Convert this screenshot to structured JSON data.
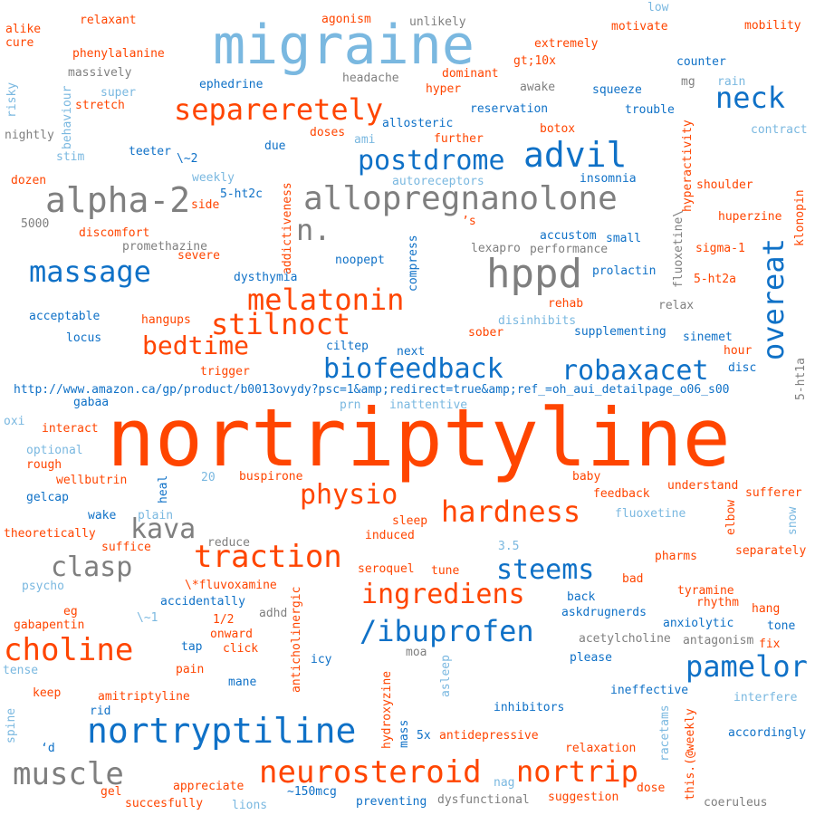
{
  "words": [
    {
      "text": "nortriptyline",
      "color": "orange"
    },
    {
      "text": "migraine",
      "color": "light-blue"
    },
    {
      "text": "hppd",
      "color": "gray"
    },
    {
      "text": "allopregnanolone",
      "color": "gray"
    },
    {
      "text": "alpha-2",
      "color": "gray"
    },
    {
      "text": "advil",
      "color": "blue"
    },
    {
      "text": "separeretely",
      "color": "orange"
    },
    {
      "text": "postdrome",
      "color": "blue"
    },
    {
      "text": "neck",
      "color": "blue"
    },
    {
      "text": "n.",
      "color": "gray"
    },
    {
      "text": "massage",
      "color": "blue"
    },
    {
      "text": "melatonin",
      "color": "orange"
    },
    {
      "text": "overeat",
      "color": "blue"
    },
    {
      "text": "stilnoct",
      "color": "orange"
    },
    {
      "text": "bedtime",
      "color": "orange"
    },
    {
      "text": "biofeedback",
      "color": "blue"
    },
    {
      "text": "robaxacet",
      "color": "blue"
    },
    {
      "text": "physio",
      "color": "orange"
    },
    {
      "text": "hardness",
      "color": "orange"
    },
    {
      "text": "kava",
      "color": "gray"
    },
    {
      "text": "traction",
      "color": "orange"
    },
    {
      "text": "clasp",
      "color": "gray"
    },
    {
      "text": "steems",
      "color": "blue"
    },
    {
      "text": "ingrediens",
      "color": "orange"
    },
    {
      "text": "choline",
      "color": "orange"
    },
    {
      "text": "/ibuprofen",
      "color": "blue"
    },
    {
      "text": "pamelor",
      "color": "blue"
    },
    {
      "text": "nortryptiline",
      "color": "blue"
    },
    {
      "text": "muscle",
      "color": "gray"
    },
    {
      "text": "neurosteroid",
      "color": "orange"
    },
    {
      "text": "nortrip",
      "color": "orange"
    },
    {
      "text": "http://www.amazon.ca/gp/product/b0013ovydy?psc=1&amp;redirect=true&amp;ref_=oh_aui_detailpage_o06_s00",
      "color": "blue"
    },
    {
      "text": "alike",
      "color": "orange"
    },
    {
      "text": "cure",
      "color": "orange"
    },
    {
      "text": "relaxant",
      "color": "orange"
    },
    {
      "text": "agonism",
      "color": "orange"
    },
    {
      "text": "unlikely",
      "color": "gray"
    },
    {
      "text": "low",
      "color": "light-blue"
    },
    {
      "text": "motivate",
      "color": "orange"
    },
    {
      "text": "mobility",
      "color": "orange"
    },
    {
      "text": "extremely",
      "color": "orange"
    },
    {
      "text": "phenylalanine",
      "color": "orange"
    },
    {
      "text": "gt;10x",
      "color": "orange"
    },
    {
      "text": "counter",
      "color": "blue"
    },
    {
      "text": "massively",
      "color": "gray"
    },
    {
      "text": "dominant",
      "color": "orange"
    },
    {
      "text": "headache",
      "color": "gray"
    },
    {
      "text": "ephedrine",
      "color": "blue"
    },
    {
      "text": "hyper",
      "color": "orange"
    },
    {
      "text": "awake",
      "color": "gray"
    },
    {
      "text": "squeeze",
      "color": "blue"
    },
    {
      "text": "mg",
      "color": "gray"
    },
    {
      "text": "rain",
      "color": "light-blue"
    },
    {
      "text": "super",
      "color": "light-blue"
    },
    {
      "text": "stretch",
      "color": "orange"
    },
    {
      "text": "reservation",
      "color": "blue"
    },
    {
      "text": "trouble",
      "color": "blue"
    },
    {
      "text": "risky",
      "color": "light-blue"
    },
    {
      "text": "behaviour",
      "color": "light-blue"
    },
    {
      "text": "allosteric",
      "color": "blue"
    },
    {
      "text": "botox",
      "color": "orange"
    },
    {
      "text": "contract",
      "color": "light-blue"
    },
    {
      "text": "nightly",
      "color": "gray"
    },
    {
      "text": "doses",
      "color": "orange"
    },
    {
      "text": "ami",
      "color": "light-blue"
    },
    {
      "text": "further",
      "color": "orange"
    },
    {
      "text": "hyperactivity",
      "color": "orange"
    },
    {
      "text": "stim",
      "color": "light-blue"
    },
    {
      "text": "teeter",
      "color": "blue"
    },
    {
      "text": "due",
      "color": "blue"
    },
    {
      "text": "insomnia",
      "color": "blue"
    },
    {
      "text": "\\~2",
      "color": "blue"
    },
    {
      "text": "weekly",
      "color": "light-blue"
    },
    {
      "text": "shoulder",
      "color": "orange"
    },
    {
      "text": "dozen",
      "color": "orange"
    },
    {
      "text": "addictiveness",
      "color": "orange"
    },
    {
      "text": "autoreceptors",
      "color": "light-blue"
    },
    {
      "text": "klonopin",
      "color": "orange"
    },
    {
      "text": "5-ht2c",
      "color": "blue"
    },
    {
      "text": "side",
      "color": "orange"
    },
    {
      "text": "huperzine",
      "color": "orange"
    },
    {
      "text": "5000",
      "color": "gray"
    },
    {
      "text": "fluoxetine\\",
      "color": "gray"
    },
    {
      "text": "discomfort",
      "color": "orange"
    },
    {
      "text": "’s",
      "color": "orange"
    },
    {
      "text": "promethazine",
      "color": "gray"
    },
    {
      "text": "small",
      "color": "blue"
    },
    {
      "text": "accustom",
      "color": "blue"
    },
    {
      "text": "lexapro",
      "color": "gray"
    },
    {
      "text": "performance",
      "color": "gray"
    },
    {
      "text": "sigma-1",
      "color": "orange"
    },
    {
      "text": "severe",
      "color": "orange"
    },
    {
      "text": "noopept",
      "color": "blue"
    },
    {
      "text": "compress",
      "color": "blue"
    },
    {
      "text": "prolactin",
      "color": "blue"
    },
    {
      "text": "5-ht2a",
      "color": "orange"
    },
    {
      "text": "dysthymia",
      "color": "blue"
    },
    {
      "text": "rehab",
      "color": "orange"
    },
    {
      "text": "relax",
      "color": "gray"
    },
    {
      "text": "acceptable",
      "color": "blue"
    },
    {
      "text": "hangups",
      "color": "orange"
    },
    {
      "text": "disinhibits",
      "color": "light-blue"
    },
    {
      "text": "supplementing",
      "color": "blue"
    },
    {
      "text": "sinemet",
      "color": "blue"
    },
    {
      "text": "locus",
      "color": "blue"
    },
    {
      "text": "sober",
      "color": "orange"
    },
    {
      "text": "ciltep",
      "color": "blue"
    },
    {
      "text": "next",
      "color": "blue"
    },
    {
      "text": "hour",
      "color": "orange"
    },
    {
      "text": "trigger",
      "color": "orange"
    },
    {
      "text": "disc",
      "color": "blue"
    },
    {
      "text": "5-ht1a",
      "color": "gray"
    },
    {
      "text": "gabaa",
      "color": "blue"
    },
    {
      "text": "prn",
      "color": "light-blue"
    },
    {
      "text": "inattentive",
      "color": "light-blue"
    },
    {
      "text": "oxi",
      "color": "light-blue"
    },
    {
      "text": "interact",
      "color": "orange"
    },
    {
      "text": "optional",
      "color": "light-blue"
    },
    {
      "text": "rough",
      "color": "orange"
    },
    {
      "text": "wellbutrin",
      "color": "orange"
    },
    {
      "text": "20",
      "color": "light-blue"
    },
    {
      "text": "buspirone",
      "color": "orange"
    },
    {
      "text": "baby",
      "color": "orange"
    },
    {
      "text": "understand",
      "color": "orange"
    },
    {
      "text": "heal",
      "color": "blue"
    },
    {
      "text": "gelcap",
      "color": "blue"
    },
    {
      "text": "feedback",
      "color": "orange"
    },
    {
      "text": "sufferer",
      "color": "orange"
    },
    {
      "text": "elbow",
      "color": "orange"
    },
    {
      "text": "plain",
      "color": "light-blue"
    },
    {
      "text": "wake",
      "color": "blue"
    },
    {
      "text": "fluoxetine",
      "color": "light-blue"
    },
    {
      "text": "snow",
      "color": "light-blue"
    },
    {
      "text": "sleep",
      "color": "orange"
    },
    {
      "text": "theoretically",
      "color": "orange"
    },
    {
      "text": "induced",
      "color": "orange"
    },
    {
      "text": "reduce",
      "color": "gray"
    },
    {
      "text": "suffice",
      "color": "orange"
    },
    {
      "text": "3.5",
      "color": "light-blue"
    },
    {
      "text": "separately",
      "color": "orange"
    },
    {
      "text": "pharms",
      "color": "orange"
    },
    {
      "text": "\\*fluvoxamine",
      "color": "orange"
    },
    {
      "text": "seroquel",
      "color": "orange"
    },
    {
      "text": "tune",
      "color": "orange"
    },
    {
      "text": "psycho",
      "color": "light-blue"
    },
    {
      "text": "bad",
      "color": "orange"
    },
    {
      "text": "tyramine",
      "color": "orange"
    },
    {
      "text": "back",
      "color": "blue"
    },
    {
      "text": "rhythm",
      "color": "orange"
    },
    {
      "text": "hang",
      "color": "orange"
    },
    {
      "text": "eg",
      "color": "orange"
    },
    {
      "text": "accidentally",
      "color": "blue"
    },
    {
      "text": "askdrugnerds",
      "color": "blue"
    },
    {
      "text": "anticholinergic",
      "color": "orange"
    },
    {
      "text": "adhd",
      "color": "gray"
    },
    {
      "text": "\\~1",
      "color": "light-blue"
    },
    {
      "text": "1/2",
      "color": "orange"
    },
    {
      "text": "gabapentin",
      "color": "orange"
    },
    {
      "text": "anxiolytic",
      "color": "blue"
    },
    {
      "text": "tone",
      "color": "blue"
    },
    {
      "text": "onward",
      "color": "orange"
    },
    {
      "text": "acetylcholine",
      "color": "gray"
    },
    {
      "text": "antagonism",
      "color": "gray"
    },
    {
      "text": "tap",
      "color": "blue"
    },
    {
      "text": "click",
      "color": "orange"
    },
    {
      "text": "fix",
      "color": "orange"
    },
    {
      "text": "moa",
      "color": "gray"
    },
    {
      "text": "tense",
      "color": "light-blue"
    },
    {
      "text": "icy",
      "color": "blue"
    },
    {
      "text": "please",
      "color": "blue"
    },
    {
      "text": "pain",
      "color": "orange"
    },
    {
      "text": "mane",
      "color": "blue"
    },
    {
      "text": "hydroxyzine",
      "color": "orange"
    },
    {
      "text": "asleep",
      "color": "light-blue"
    },
    {
      "text": "keep",
      "color": "orange"
    },
    {
      "text": "ineffective",
      "color": "blue"
    },
    {
      "text": "amitriptyline",
      "color": "orange"
    },
    {
      "text": "interfere",
      "color": "light-blue"
    },
    {
      "text": "inhibitors",
      "color": "blue"
    },
    {
      "text": "rid",
      "color": "blue"
    },
    {
      "text": "racetams",
      "color": "light-blue"
    },
    {
      "text": "spine",
      "color": "light-blue"
    },
    {
      "text": "accordingly",
      "color": "blue"
    },
    {
      "text": "5x",
      "color": "blue"
    },
    {
      "text": "antidepressive",
      "color": "orange"
    },
    {
      "text": "mass",
      "color": "blue"
    },
    {
      "text": "‘d",
      "color": "blue"
    },
    {
      "text": "this.(@weekly",
      "color": "orange"
    },
    {
      "text": "relaxation",
      "color": "orange"
    },
    {
      "text": "nag",
      "color": "light-blue"
    },
    {
      "text": "appreciate",
      "color": "orange"
    },
    {
      "text": "dose",
      "color": "orange"
    },
    {
      "text": "gel",
      "color": "orange"
    },
    {
      "text": "~150mcg",
      "color": "blue"
    },
    {
      "text": "suggestion",
      "color": "orange"
    },
    {
      "text": "succesfully",
      "color": "orange"
    },
    {
      "text": "lions",
      "color": "light-blue"
    },
    {
      "text": "preventing",
      "color": "blue"
    },
    {
      "text": "dysfunctional",
      "color": "gray"
    },
    {
      "text": "coeruleus",
      "color": "gray"
    }
  ],
  "colors": {
    "orange": "#ff4500",
    "blue": "#0f71c7",
    "light-blue": "#7ab8e0",
    "gray": "#7f7f7f",
    "background": "#ffffff"
  }
}
